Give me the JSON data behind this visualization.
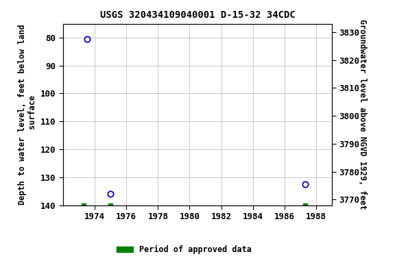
{
  "title": "USGS 320434109040001 D-15-32 34CDC",
  "points": [
    {
      "year": 1973.5,
      "depth": 80.5
    },
    {
      "year": 1975.0,
      "depth": 136.0
    },
    {
      "year": 1987.3,
      "depth": 132.5
    }
  ],
  "green_squares": [
    {
      "year": 1973.3,
      "depth": 140
    },
    {
      "year": 1975.0,
      "depth": 140
    },
    {
      "year": 1987.3,
      "depth": 140
    }
  ],
  "xlim": [
    1972,
    1989
  ],
  "xticks": [
    1974,
    1976,
    1978,
    1980,
    1982,
    1984,
    1986,
    1988
  ],
  "ylim_depth": [
    140,
    75
  ],
  "yticks_depth": [
    80,
    90,
    100,
    110,
    120,
    130,
    140
  ],
  "ylim_elev_bottom": 3768,
  "ylim_elev_top": 3833,
  "yticks_elev": [
    3770,
    3780,
    3790,
    3800,
    3810,
    3820,
    3830
  ],
  "ylabel_left": "Depth to water level, feet below land\n surface",
  "ylabel_right": "Groundwater level above NGVD 1929, feet",
  "legend_label": "Period of approved data",
  "legend_color": "#008000",
  "point_color": "#0000cc",
  "bg_color": "#ffffff",
  "grid_color": "#c8c8c8",
  "title_fontsize": 10,
  "label_fontsize": 8.5,
  "tick_fontsize": 9
}
